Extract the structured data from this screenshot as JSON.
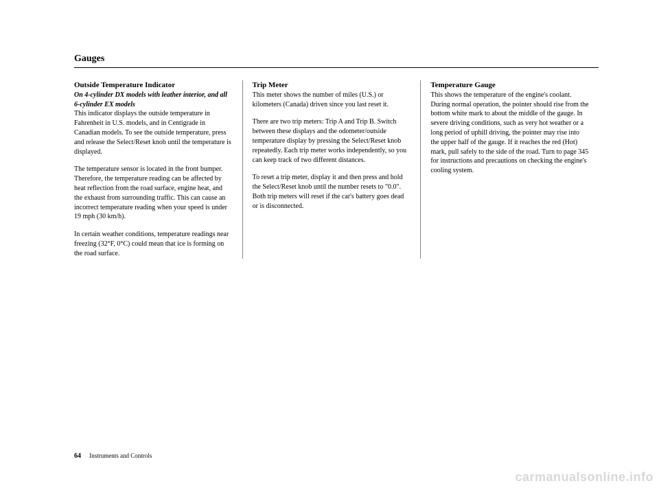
{
  "header": {
    "title": "Gauges"
  },
  "columns": {
    "col1": {
      "heading": "Outside Temperature Indicator",
      "subheading": "On 4-cylinder DX models with leather interior, and all 6-cylinder EX models",
      "p1": "This indicator displays the outside temperature in Fahrenheit in U.S. models, and in Centigrade in Canadian models. To see the outside temperature, press and release the Select/Reset knob until the temperature is displayed.",
      "p2": "The temperature sensor is located in the front bumper. Therefore, the temperature reading can be affected by heat reflection from the road surface, engine heat, and the exhaust from surrounding traffic. This can cause an incorrect temperature reading when your speed is under 19 mph (30 km/h).",
      "p3": "In certain weather conditions, temperature readings near freezing (32°F, 0°C) could mean that ice is forming on the road surface."
    },
    "col2": {
      "heading": "Trip Meter",
      "p1": "This meter shows the number of miles (U.S.) or kilometers (Canada) driven since you last reset it.",
      "p2": "There are two trip meters: Trip A and Trip B. Switch between these displays and the odometer/outside temperature display by pressing the Select/Reset knob repeatedly. Each trip meter works independently, so you can keep track of two different distances.",
      "p3": "To reset a trip meter, display it and then press and hold the Select/Reset knob until the number resets to \"0.0\". Both trip meters will reset if the car's battery goes dead or is disconnected."
    },
    "col3": {
      "heading": "Temperature Gauge",
      "p1": "This shows the temperature of the engine's coolant. During normal operation, the pointer should rise from the bottom white mark to about the middle of the gauge. In severe driving conditions, such as very hot weather or a long period of uphill driving, the pointer may rise into the upper half of the gauge. If it reaches the red (Hot) mark, pull safely to the side of the road. Turn to page 345 for instructions and precautions on checking the engine's cooling system."
    }
  },
  "footer": {
    "page": "64",
    "section": "Instruments and Controls"
  },
  "watermark": "carmanualsonline.info"
}
